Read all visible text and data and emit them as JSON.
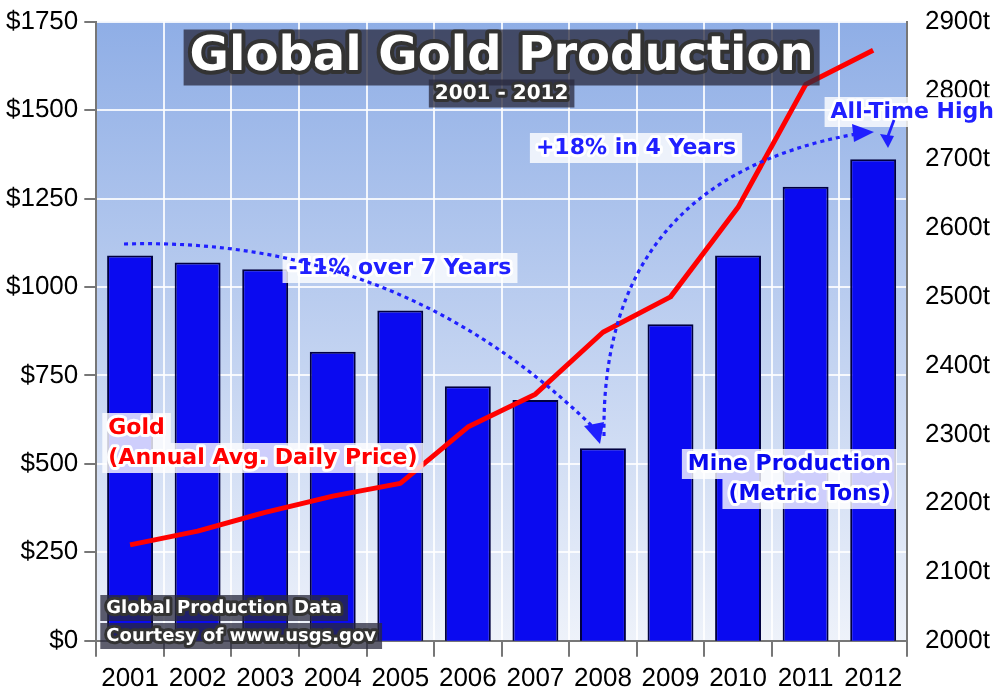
{
  "chart_data": {
    "type": "bar",
    "title": "Global Gold Production",
    "subtitle": "2001 - 2012",
    "categories": [
      "2001",
      "2002",
      "2003",
      "2004",
      "2005",
      "2006",
      "2007",
      "2008",
      "2009",
      "2010",
      "2011",
      "2012"
    ],
    "series": [
      {
        "name": "Mine Production (Metric Tons)",
        "axis": "y2",
        "color": "#0a0af0",
        "values": [
          2560,
          2550,
          2540,
          2420,
          2480,
          2370,
          2350,
          2280,
          2460,
          2560,
          2660,
          2700
        ]
      },
      {
        "name": "Gold (Annual Avg. Daily Price)",
        "type": "line",
        "axis": "y",
        "color": "#ff0000",
        "values": [
          271,
          310,
          363,
          409,
          445,
          604,
          697,
          872,
          972,
          1225,
          1572,
          1669
        ]
      }
    ],
    "ylim": [
      0,
      1750
    ],
    "yticks": [
      {
        "value": 0,
        "label": "$0"
      },
      {
        "value": 250,
        "label": "$250"
      },
      {
        "value": 500,
        "label": "$500"
      },
      {
        "value": 750,
        "label": "$750"
      },
      {
        "value": 1000,
        "label": "$1000"
      },
      {
        "value": 1250,
        "label": "$1250"
      },
      {
        "value": 1500,
        "label": "$1500"
      },
      {
        "value": 1750,
        "label": "$1750"
      }
    ],
    "y2lim": [
      2000,
      2900
    ],
    "y2ticks": [
      {
        "value": 2000,
        "label": "2000t"
      },
      {
        "value": 2100,
        "label": "2100t"
      },
      {
        "value": 2200,
        "label": "2200t"
      },
      {
        "value": 2300,
        "label": "2300t"
      },
      {
        "value": 2400,
        "label": "2400t"
      },
      {
        "value": 2500,
        "label": "2500t"
      },
      {
        "value": 2600,
        "label": "2600t"
      },
      {
        "value": 2700,
        "label": "2700t"
      },
      {
        "value": 2800,
        "label": "2800t"
      },
      {
        "value": 2900,
        "label": "2900t"
      }
    ],
    "annotations": [
      "-11% over 7 Years",
      "+18% in 4 Years",
      "All-Time High",
      "Global Production Data",
      "Courtesy of www.usgs.gov"
    ],
    "grid": true,
    "legend": false,
    "marker": "none",
    "line_style": "solid"
  }
}
